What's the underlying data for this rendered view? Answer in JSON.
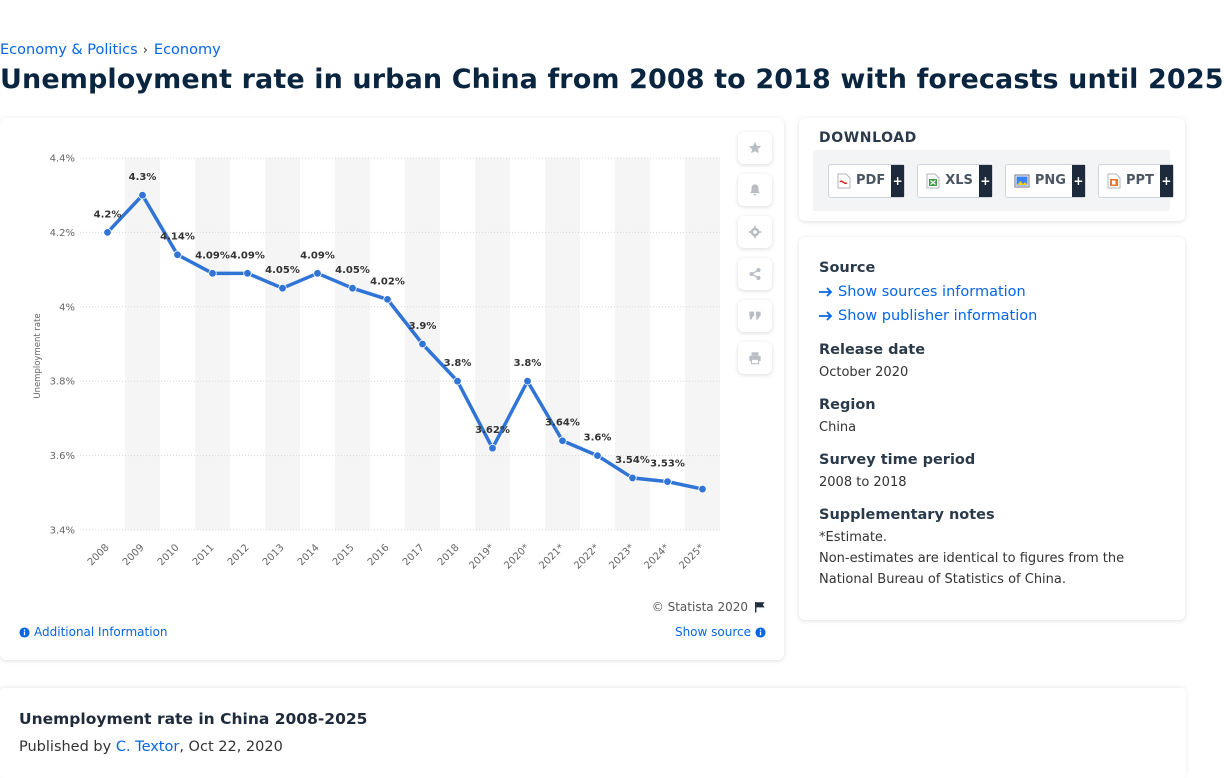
{
  "breadcrumb": {
    "parent": "Economy & Politics",
    "separator": "›",
    "current": "Economy"
  },
  "page": {
    "title": "Unemployment rate in urban China from 2008 to 2018 with forecasts until 2025"
  },
  "chart_panel": {
    "copyright": "© Statista 2020",
    "additional_info": "Additional Information",
    "show_source": "Show source",
    "tools": [
      "star-icon",
      "bell-icon",
      "gear-icon",
      "share-icon",
      "quote-icon",
      "print-icon"
    ]
  },
  "chart_data": {
    "type": "line",
    "title": "",
    "xlabel": "",
    "ylabel": "Unemployment rate",
    "categories": [
      "2008",
      "2009",
      "2010",
      "2011",
      "2012",
      "2013",
      "2014",
      "2015",
      "2016",
      "2017",
      "2018",
      "2019*",
      "2020*",
      "2021*",
      "2022*",
      "2023*",
      "2024*",
      "2025*"
    ],
    "series": [
      {
        "name": "",
        "values": [
          4.2,
          4.3,
          4.14,
          4.09,
          4.09,
          4.05,
          4.09,
          4.05,
          4.02,
          3.9,
          3.8,
          3.62,
          3.8,
          3.64,
          3.6,
          3.54,
          3.53,
          3.51
        ]
      }
    ],
    "data_labels": [
      "4.2%",
      "4.3%",
      "4.14%",
      "4.09%",
      "4.09%",
      "4.05%",
      "4.09%",
      "4.05%",
      "4.02%",
      "3.9%",
      "3.8%",
      "3.62%",
      "3.8%",
      "3.64%",
      "3.6%",
      "3.54%",
      "3.53%",
      ""
    ],
    "ylim": [
      3.4,
      4.4
    ],
    "yticks": [
      "3.4%",
      "3.6%",
      "3.8%",
      "4%",
      "4.2%",
      "4.4%"
    ],
    "ytick_values": [
      3.4,
      3.6,
      3.8,
      4.0,
      4.2,
      4.4
    ],
    "line_color": "#3074d6",
    "band_color": "#f5f5f5",
    "grid": true
  },
  "download": {
    "heading": "DOWNLOAD",
    "buttons": [
      {
        "label": "PDF",
        "icon": "pdf-file-icon",
        "plus": "+"
      },
      {
        "label": "XLS",
        "icon": "xls-file-icon",
        "plus": "+"
      },
      {
        "label": "PNG",
        "icon": "png-file-icon",
        "plus": "+"
      },
      {
        "label": "PPT",
        "icon": "ppt-file-icon",
        "plus": "+"
      }
    ]
  },
  "meta": {
    "source_label": "Source",
    "show_sources": "Show sources information",
    "show_publisher": "Show publisher information",
    "release_label": "Release date",
    "release_value": "October 2020",
    "region_label": "Region",
    "region_value": "China",
    "period_label": "Survey time period",
    "period_value": "2008 to 2018",
    "notes_label": "Supplementary notes",
    "notes_line1": "*Estimate.",
    "notes_line2": "Non-estimates are identical to figures from the National Bureau of Statistics of China."
  },
  "footer": {
    "title": "Unemployment rate in China 2008-2025",
    "published_prefix": "Published by",
    "author": "C. Textor",
    "date": ", Oct 22, 2020"
  },
  "colors": {
    "accent": "#0666e5",
    "title": "#0a2540"
  }
}
